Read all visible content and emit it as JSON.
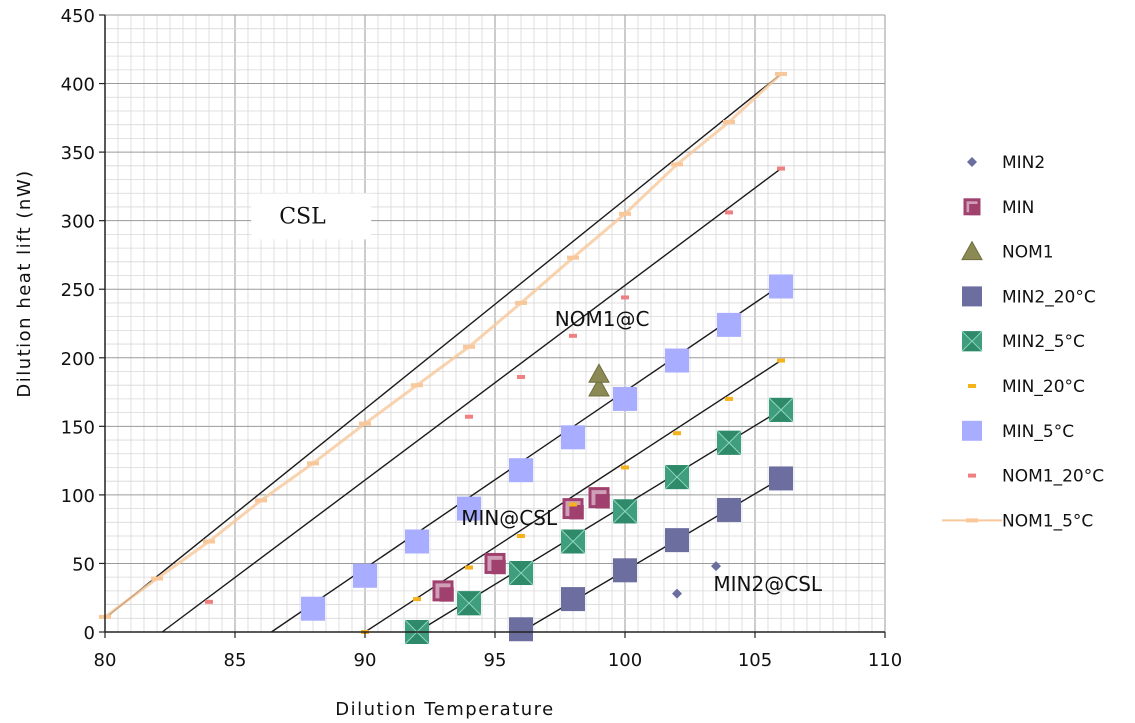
{
  "chart_data": {
    "type": "scatter",
    "xlabel": "Dilution    Temperature",
    "ylabel": "Dilution    heat    lift    (nW)",
    "xlim": [
      80,
      110
    ],
    "ylim": [
      0,
      450
    ],
    "xticks": [
      "80",
      "85",
      "90",
      "95",
      "100",
      "105",
      "110"
    ],
    "yticks": [
      "0",
      "50",
      "100",
      "150",
      "200",
      "250",
      "300",
      "350",
      "400",
      "450"
    ],
    "grid": true,
    "legend_position": "right",
    "lines": [
      {
        "points": [
          [
            80,
            10
          ],
          [
            106,
            407
          ]
        ]
      },
      {
        "points": [
          [
            82.2,
            0
          ],
          [
            106,
            338
          ]
        ]
      },
      {
        "points": [
          [
            86.4,
            0
          ],
          [
            106,
            253
          ]
        ]
      },
      {
        "points": [
          [
            90,
            0
          ],
          [
            106,
            198
          ]
        ]
      },
      {
        "points": [
          [
            92,
            0
          ],
          [
            106,
            162
          ]
        ]
      },
      {
        "points": [
          [
            96,
            0
          ],
          [
            106,
            112
          ]
        ]
      }
    ],
    "series": [
      {
        "name": "MIN2",
        "marker": "diamond",
        "color": "#6a6fa0",
        "size": 10,
        "x": [
          102,
          103.5
        ],
        "y": [
          28,
          48
        ]
      },
      {
        "name": "MIN",
        "marker": "square-outline",
        "color": "#a0406e",
        "size": 18,
        "x": [
          93,
          95,
          98,
          99
        ],
        "y": [
          30,
          50,
          90,
          98
        ]
      },
      {
        "name": "NOM1",
        "marker": "triangle",
        "color": "#8b8a55",
        "size": 20,
        "x": [
          99,
          99
        ],
        "y": [
          178,
          188
        ]
      },
      {
        "name": "MIN2_20°C",
        "marker": "square",
        "color": "#6b6e9e",
        "size": 24,
        "x": [
          96,
          98,
          100,
          102,
          104,
          106
        ],
        "y": [
          2,
          24,
          45,
          67,
          89,
          112
        ]
      },
      {
        "name": "MIN2_5°C",
        "marker": "square-x",
        "color": "#3e9e7e",
        "size": 24,
        "x": [
          92,
          94,
          96,
          98,
          100,
          102,
          104,
          106
        ],
        "y": [
          0,
          21,
          43,
          66,
          88,
          113,
          138,
          162
        ]
      },
      {
        "name": "MIN_20°C",
        "marker": "dash",
        "color": "#f5b21b",
        "size": 8,
        "x": [
          90,
          92,
          94,
          96,
          98,
          100,
          102,
          104,
          106
        ],
        "y": [
          0,
          24,
          47,
          70,
          93,
          120,
          145,
          170,
          198
        ]
      },
      {
        "name": "MIN_5°C",
        "marker": "square",
        "color": "#a9adff",
        "size": 24,
        "x": [
          88,
          90,
          92,
          94,
          96,
          98,
          100,
          102,
          104,
          106
        ],
        "y": [
          17,
          41,
          66,
          90,
          118,
          142,
          170,
          198,
          224,
          252
        ]
      },
      {
        "name": "NOM1_20°C",
        "marker": "dash",
        "color": "#f08080",
        "size": 8,
        "x": [
          84,
          94,
          96,
          98,
          100,
          104,
          106
        ],
        "y": [
          22,
          157,
          186,
          216,
          244,
          306,
          338
        ]
      },
      {
        "name": "NOM1_5°C",
        "marker": "dash-line",
        "color": "#f8c79a",
        "size": 12,
        "x": [
          80,
          82,
          84,
          86,
          88,
          90,
          92,
          94,
          96,
          98,
          100,
          102,
          104,
          106
        ],
        "y": [
          11,
          39,
          66,
          96,
          123,
          152,
          180,
          208,
          240,
          273,
          305,
          341,
          372,
          407
        ]
      }
    ],
    "annotations": [
      {
        "text": "CSL",
        "x": 86.7,
        "y": 298,
        "font": "serif",
        "boxed": true
      },
      {
        "text": "NOM1@C",
        "x": 97.3,
        "y": 223
      },
      {
        "text": "MIN@CSL",
        "x": 93.7,
        "y": 78
      },
      {
        "text": "MIN2@CSL",
        "x": 103.4,
        "y": 30
      }
    ]
  }
}
